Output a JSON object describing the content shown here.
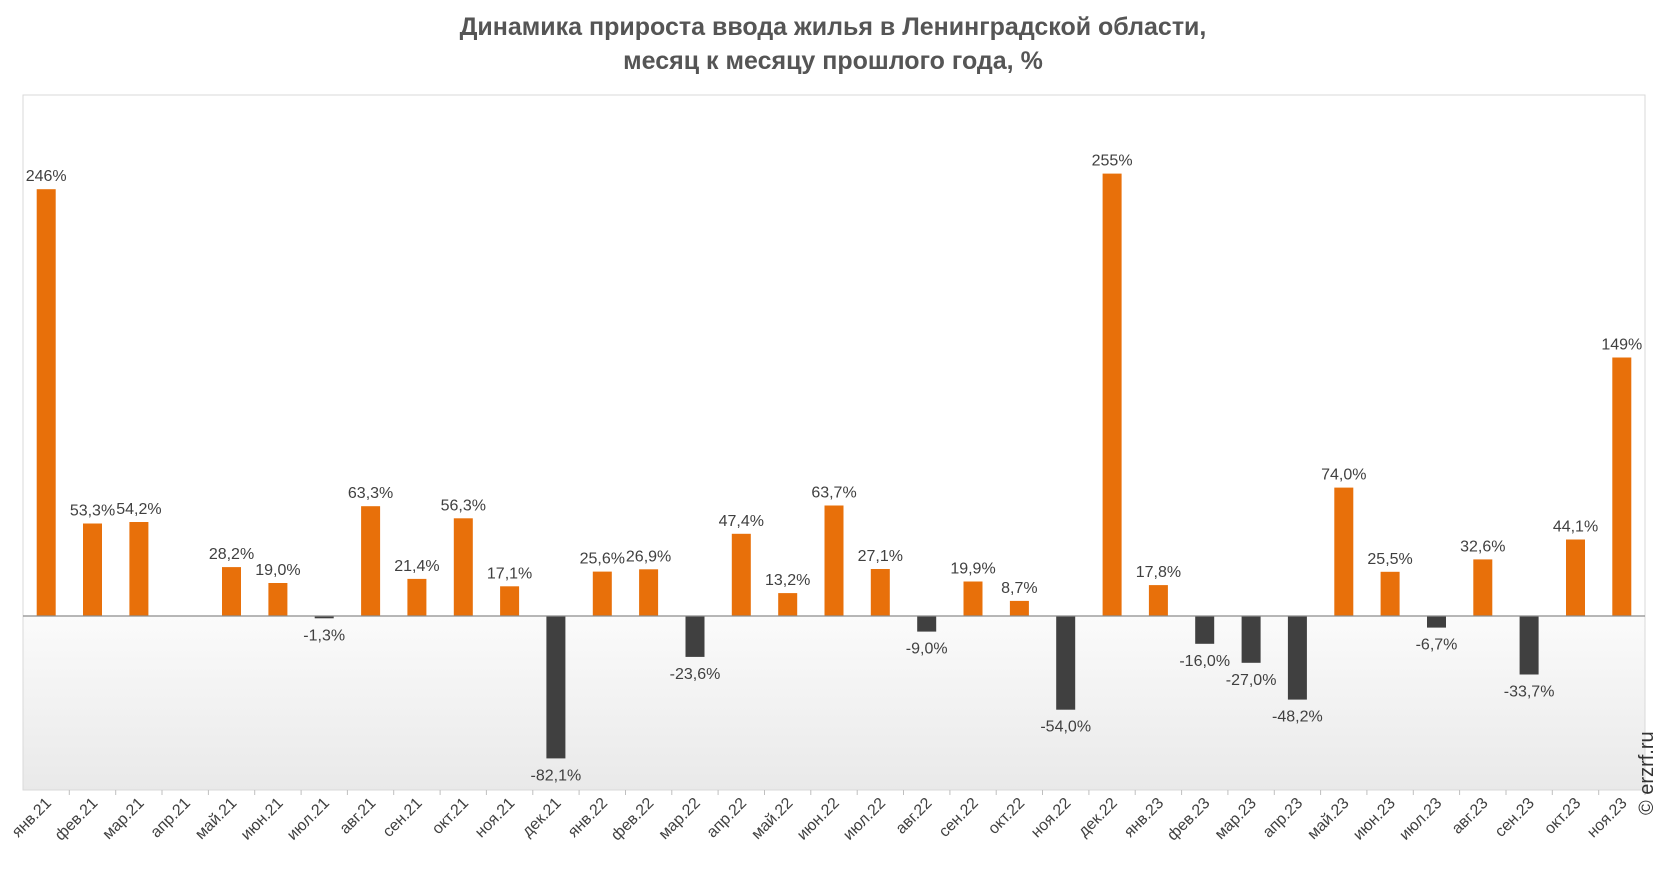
{
  "title_line1": "Динамика прироста ввода жилья в Ленинградской области,",
  "title_line2": "месяц к месяцу прошлого года, %",
  "watermark": "© erzrf.ru",
  "colors": {
    "positive": "#E8700A",
    "negative": "#404040"
  },
  "chart_data": {
    "type": "bar",
    "title": "Динамика прироста ввода жилья в Ленинградской области, месяц к месяцу прошлого года, %",
    "xlabel": "",
    "ylabel": "",
    "grid": false,
    "legend": "none",
    "ylim": [
      -100,
      290
    ],
    "categories": [
      "янв.21",
      "фев.21",
      "мар.21",
      "апр.21",
      "май.21",
      "июн.21",
      "июл.21",
      "авг.21",
      "сен.21",
      "окт.21",
      "ноя.21",
      "дек.21",
      "янв.22",
      "фев.22",
      "мар.22",
      "апр.22",
      "май.22",
      "июн.22",
      "июл.22",
      "авг.22",
      "сен.22",
      "окт.22",
      "ноя.22",
      "дек.22",
      "янв.23",
      "фев.23",
      "мар.23",
      "апр.23",
      "май.23",
      "июн.23",
      "июл.23",
      "авг.23",
      "сен.23",
      "окт.23",
      "ноя.23"
    ],
    "values": [
      246,
      53.3,
      54.2,
      null,
      28.2,
      19.0,
      -1.3,
      63.3,
      21.4,
      56.3,
      17.1,
      -82.1,
      25.6,
      26.9,
      -23.6,
      47.4,
      13.2,
      63.7,
      27.1,
      -9.0,
      19.9,
      8.7,
      -54.0,
      255,
      17.8,
      -16.0,
      -27.0,
      -48.2,
      74.0,
      25.5,
      -6.7,
      32.6,
      -33.7,
      44.1,
      149
    ],
    "labels": [
      "246%",
      "53,3%",
      "54,2%",
      "",
      "28,2%",
      "19,0%",
      "-1,3%",
      "63,3%",
      "21,4%",
      "56,3%",
      "17,1%",
      "-82,1%",
      "25,6%",
      "26,9%",
      "-23,6%",
      "47,4%",
      "13,2%",
      "63,7%",
      "27,1%",
      "-9,0%",
      "19,9%",
      "8,7%",
      "-54,0%",
      "255%",
      "17,8%",
      "-16,0%",
      "-27,0%",
      "-48,2%",
      "74,0%",
      "25,5%",
      "-6,7%",
      "32,6%",
      "-33,7%",
      "44,1%",
      "149%"
    ]
  }
}
